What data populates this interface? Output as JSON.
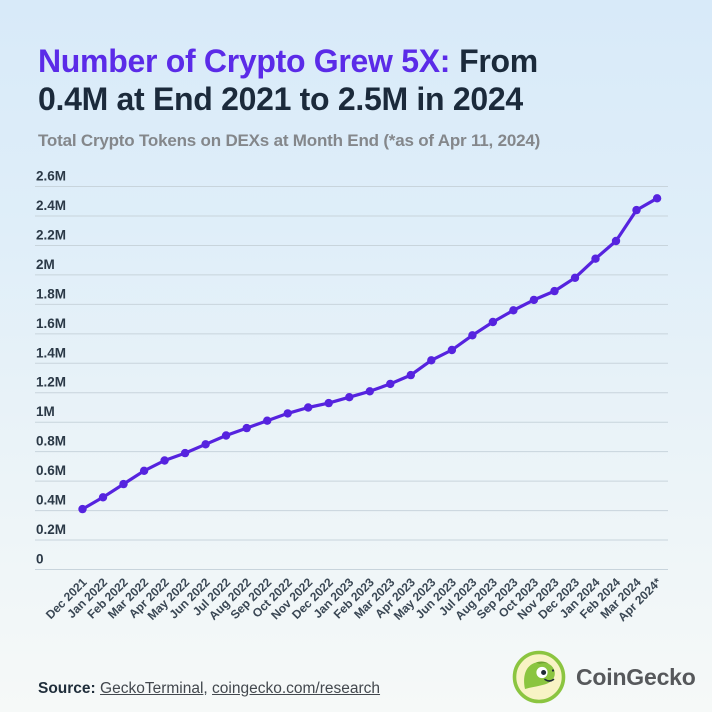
{
  "title": {
    "highlight": "Number of Crypto Grew 5X:",
    "rest_line1": "From",
    "line2": "0.4M at End 2021 to 2.5M in 2024"
  },
  "subtitle": "Total Crypto Tokens on DEXs at Month End (*as of Apr 11, 2024)",
  "chart_data": {
    "type": "line",
    "title": "Total Crypto Tokens on DEXs at Month End",
    "categories": [
      "Dec 2021",
      "Jan 2022",
      "Feb 2022",
      "Mar 2022",
      "Apr 2022",
      "May 2022",
      "Jun 2022",
      "Jul 2022",
      "Aug 2022",
      "Sep 2022",
      "Oct 2022",
      "Nov 2022",
      "Dec 2022",
      "Jan 2023",
      "Feb 2023",
      "Mar 2023",
      "Apr 2023",
      "May 2023",
      "Jun 2023",
      "Jul 2023",
      "Aug 2023",
      "Sep 2023",
      "Oct 2023",
      "Nov 2023",
      "Dec 2023",
      "Jan 2024",
      "Feb 2024",
      "Mar 2024",
      "Apr 2024*"
    ],
    "values": [
      0.41,
      0.49,
      0.58,
      0.67,
      0.74,
      0.79,
      0.85,
      0.91,
      0.96,
      1.01,
      1.06,
      1.1,
      1.13,
      1.17,
      1.21,
      1.26,
      1.32,
      1.42,
      1.49,
      1.59,
      1.68,
      1.76,
      1.83,
      1.89,
      1.98,
      2.11,
      2.23,
      2.44,
      2.52
    ],
    "unit": "M tokens",
    "ylim": [
      0,
      2.6
    ],
    "y_tick_step": 0.2,
    "y_tick_labels": [
      "0",
      "0.2M",
      "0.4M",
      "0.6M",
      "0.8M",
      "1M",
      "1.2M",
      "1.4M",
      "1.6M",
      "1.8M",
      "2M",
      "2.2M",
      "2.4M",
      "2.6M"
    ],
    "grid": true,
    "legend": "none",
    "line_color": "#5623DF",
    "point_color": "#5623DF",
    "grid_color": "#C8D4DC",
    "tick_label_color": "#2B3947",
    "x_label_color": "#3A4754"
  },
  "footer": {
    "source_label": "Source:",
    "link1": "GeckoTerminal",
    "separator": ", ",
    "link2": "coingecko.com/research"
  },
  "brand": {
    "name": "CoinGecko"
  },
  "colors": {
    "accent_purple": "#5B2BE8",
    "title_dark": "#1B2A3B",
    "subtitle_gray": "#84878B",
    "background_top": "#D8EAF9",
    "background_bottom": "#F6F9F8",
    "brand_green": "#8BC540",
    "brand_cream": "#F8F3C5",
    "brand_text_gray": "#56585B"
  }
}
